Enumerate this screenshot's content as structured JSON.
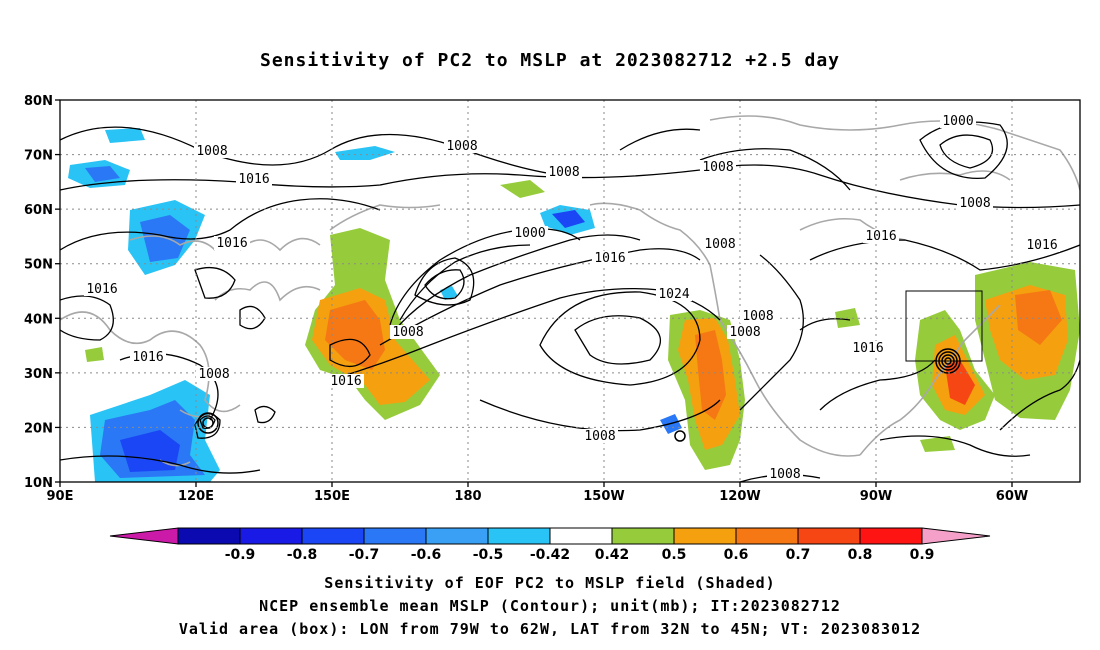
{
  "title": "Sensitivity of PC2 to MSLP at 2023082712 +2.5 day",
  "captions": {
    "line1": "Sensitivity of EOF PC2 to MSLP field (Shaded)",
    "line2": "NCEP ensemble mean MSLP (Contour); unit(mb); IT:2023082712",
    "line3": "Valid area (box): LON from 79W to 62W, LAT from 32N to 45N; VT: 2023083012"
  },
  "axes": {
    "lat_labels": [
      "80N",
      "70N",
      "60N",
      "50N",
      "40N",
      "30N",
      "20N",
      "10N"
    ],
    "lon_labels": [
      "90E",
      "120E",
      "150E",
      "180",
      "150W",
      "120W",
      "90W",
      "60W"
    ]
  },
  "contour_labels": [
    "1008",
    "1008",
    "1008",
    "1000",
    "1016",
    "1008",
    "1016",
    "1000",
    "1016",
    "1008",
    "1016",
    "1024",
    "1008",
    "1008",
    "1016",
    "1008",
    "1008",
    "1016",
    "1016",
    "1008",
    "1016",
    "1008",
    "1016",
    "1008"
  ],
  "colorbar": {
    "labels": [
      "-0.9",
      "-0.8",
      "-0.7",
      "-0.6",
      "-0.5",
      "-0.42",
      "0.42",
      "0.5",
      "0.6",
      "0.7",
      "0.8",
      "0.9"
    ],
    "colors": [
      "#cc1aa8",
      "#0a0ab0",
      "#1a1ae6",
      "#1a46f5",
      "#2a78f5",
      "#3aa0f5",
      "#2ac3f5",
      "#ffffff",
      "#96cc3c",
      "#f5a00f",
      "#f57814",
      "#f54614",
      "#ff1414",
      "#f5a0c8"
    ]
  },
  "map_legend": {
    "valid_area_box": "79W–62W, 32N–45N"
  }
}
